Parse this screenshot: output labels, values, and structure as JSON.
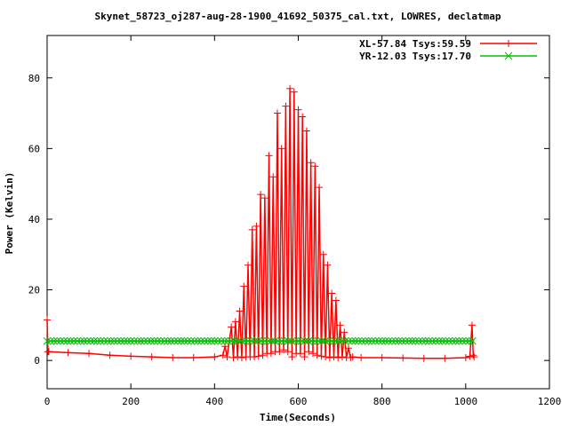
{
  "chart_data": {
    "type": "line",
    "title": "Skynet_58723_oj287-aug-28-1900_41692_50375_cal.txt, LOWRES, declatmap",
    "xlabel": "Time(Seconds)",
    "ylabel": "Power (Kelvin)",
    "xlim": [
      0,
      1200
    ],
    "ylim": [
      -8,
      92
    ],
    "xticks": [
      0,
      200,
      400,
      600,
      800,
      1000,
      1200
    ],
    "yticks": [
      0,
      20,
      40,
      60,
      80
    ],
    "grid": false,
    "legend_position": "top-right",
    "series": [
      {
        "name": "XL-57.84 Tsys:59.59",
        "color": "#ff0000",
        "marker": "plus",
        "x": [
          0,
          2,
          4,
          50,
          100,
          150,
          200,
          250,
          300,
          350,
          400,
          420,
          425,
          430,
          440,
          445,
          450,
          455,
          460,
          465,
          470,
          475,
          480,
          485,
          490,
          495,
          500,
          505,
          510,
          515,
          520,
          525,
          530,
          535,
          540,
          545,
          550,
          555,
          560,
          565,
          570,
          575,
          580,
          585,
          590,
          595,
          600,
          605,
          610,
          615,
          620,
          625,
          630,
          635,
          640,
          645,
          650,
          655,
          660,
          665,
          670,
          675,
          680,
          685,
          690,
          695,
          700,
          705,
          710,
          715,
          720,
          725,
          730,
          750,
          800,
          850,
          900,
          950,
          1000,
          1010,
          1015,
          1018,
          1020
        ],
        "y": [
          11.5,
          2.5,
          2.5,
          2.2,
          2.0,
          1.5,
          1.2,
          1.0,
          0.8,
          0.8,
          1.0,
          1.5,
          4.0,
          1.0,
          9.5,
          0.8,
          11.0,
          1.0,
          14.0,
          0.8,
          21.0,
          1.0,
          27.0,
          1.0,
          37.0,
          1.0,
          38.0,
          1.2,
          47.0,
          1.5,
          46.0,
          2.0,
          58.0,
          2.0,
          52.0,
          2.5,
          70.0,
          2.5,
          60.0,
          3.0,
          72.0,
          2.5,
          77.0,
          1.0,
          76.0,
          2.0,
          71.0,
          2.0,
          69.0,
          1.0,
          65.0,
          2.5,
          56.0,
          2.0,
          55.0,
          1.5,
          49.0,
          1.2,
          30.0,
          1.0,
          27.0,
          0.8,
          19.0,
          1.0,
          17.0,
          0.8,
          10.0,
          1.0,
          8.0,
          0.8,
          3.5,
          0.8,
          1.0,
          0.8,
          0.8,
          0.7,
          0.6,
          0.6,
          0.8,
          1.2,
          10.0,
          1.5,
          1.0
        ]
      },
      {
        "name": "YR-12.03 Tsys:17.70",
        "color": "#00c000",
        "marker": "cross",
        "x": [
          0,
          1020
        ],
        "y": [
          5.5,
          5.5
        ]
      }
    ]
  }
}
